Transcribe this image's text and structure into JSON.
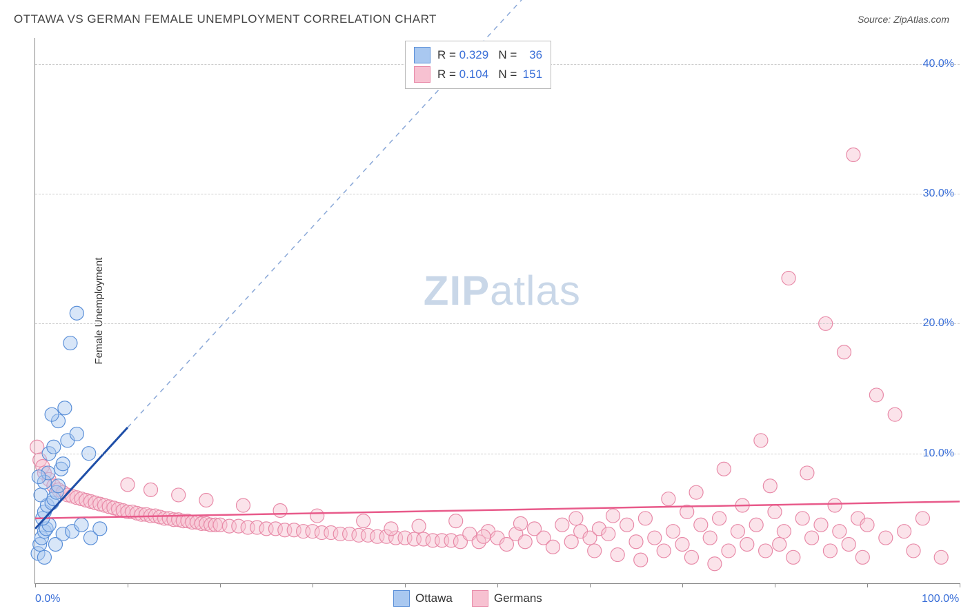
{
  "header": {
    "title": "OTTAWA VS GERMAN FEMALE UNEMPLOYMENT CORRELATION CHART",
    "source_prefix": "Source: ",
    "source_name": "ZipAtlas.com"
  },
  "ylabel": "Female Unemployment",
  "watermark": {
    "zip": "ZIP",
    "atlas": "atlas"
  },
  "chart": {
    "type": "scatter",
    "xlim": [
      0,
      100
    ],
    "ylim": [
      0,
      42
    ],
    "xticks": [
      0,
      10,
      20,
      30,
      40,
      50,
      60,
      70,
      80,
      90,
      100
    ],
    "xlabels_shown": {
      "0": "0.0%",
      "100": "100.0%"
    },
    "yticks": [
      10,
      20,
      30,
      40
    ],
    "ylabels": {
      "10": "10.0%",
      "20": "20.0%",
      "30": "30.0%",
      "40": "40.0%"
    },
    "grid_color": "#cccccc",
    "axis_color": "#888888",
    "tick_label_color": "#3a6fd8",
    "background_color": "#ffffff",
    "marker_radius": 10,
    "marker_opacity": 0.45,
    "series": [
      {
        "name": "Ottawa",
        "fill": "#a9c8f0",
        "stroke": "#5a8fd8",
        "trend_color": "#1f4fa8",
        "trend_dash_color": "#8aa8d8",
        "R": "0.329",
        "N": "36",
        "trend": {
          "x1": 0,
          "y1": 4.2,
          "x2": 10,
          "y2": 12.0,
          "dash_to_x": 54,
          "dash_to_y": 46
        },
        "points": [
          [
            0.3,
            2.3
          ],
          [
            0.5,
            3.0
          ],
          [
            0.7,
            3.5
          ],
          [
            1.0,
            4.0
          ],
          [
            1.2,
            4.2
          ],
          [
            1.5,
            4.5
          ],
          [
            0.8,
            5.0
          ],
          [
            1.0,
            5.5
          ],
          [
            1.3,
            6.0
          ],
          [
            1.8,
            6.2
          ],
          [
            2.0,
            6.5
          ],
          [
            2.3,
            7.0
          ],
          [
            2.5,
            7.5
          ],
          [
            0.6,
            6.8
          ],
          [
            1.0,
            7.8
          ],
          [
            1.4,
            8.5
          ],
          [
            2.8,
            8.8
          ],
          [
            3.0,
            9.2
          ],
          [
            1.5,
            10.0
          ],
          [
            2.0,
            10.5
          ],
          [
            3.5,
            11.0
          ],
          [
            4.5,
            11.5
          ],
          [
            2.5,
            12.5
          ],
          [
            3.2,
            13.5
          ],
          [
            1.8,
            13.0
          ],
          [
            5.8,
            10.0
          ],
          [
            3.8,
            18.5
          ],
          [
            4.5,
            20.8
          ],
          [
            2.2,
            3.0
          ],
          [
            3.0,
            3.8
          ],
          [
            4.0,
            4.0
          ],
          [
            5.0,
            4.5
          ],
          [
            6.0,
            3.5
          ],
          [
            7.0,
            4.2
          ],
          [
            1.0,
            2.0
          ],
          [
            0.4,
            8.2
          ]
        ]
      },
      {
        "name": "Germans",
        "fill": "#f7c1d1",
        "stroke": "#e88aa8",
        "trend_color": "#e85a8a",
        "R": "0.104",
        "N": "151",
        "trend": {
          "x1": 0,
          "y1": 5.0,
          "x2": 100,
          "y2": 6.3
        },
        "points": [
          [
            0.2,
            10.5
          ],
          [
            0.5,
            9.5
          ],
          [
            0.8,
            9.0
          ],
          [
            1.0,
            8.5
          ],
          [
            1.5,
            8.0
          ],
          [
            2.0,
            7.5
          ],
          [
            2.5,
            7.2
          ],
          [
            3.0,
            7.0
          ],
          [
            3.5,
            6.8
          ],
          [
            4.0,
            6.7
          ],
          [
            4.5,
            6.6
          ],
          [
            5.0,
            6.5
          ],
          [
            5.5,
            6.4
          ],
          [
            6.0,
            6.3
          ],
          [
            6.5,
            6.2
          ],
          [
            7.0,
            6.1
          ],
          [
            7.5,
            6.0
          ],
          [
            8.0,
            5.9
          ],
          [
            8.5,
            5.8
          ],
          [
            9.0,
            5.7
          ],
          [
            9.5,
            5.6
          ],
          [
            10.0,
            5.5
          ],
          [
            10.5,
            5.5
          ],
          [
            11.0,
            5.4
          ],
          [
            11.5,
            5.3
          ],
          [
            12.0,
            5.3
          ],
          [
            12.5,
            5.2
          ],
          [
            13.0,
            5.2
          ],
          [
            13.5,
            5.1
          ],
          [
            14.0,
            5.0
          ],
          [
            14.5,
            5.0
          ],
          [
            15.0,
            4.9
          ],
          [
            15.5,
            4.9
          ],
          [
            16.0,
            4.8
          ],
          [
            16.5,
            4.8
          ],
          [
            17.0,
            4.7
          ],
          [
            17.5,
            4.7
          ],
          [
            18.0,
            4.6
          ],
          [
            18.5,
            4.6
          ],
          [
            19.0,
            4.5
          ],
          [
            19.5,
            4.5
          ],
          [
            20.0,
            4.5
          ],
          [
            21.0,
            4.4
          ],
          [
            22.0,
            4.4
          ],
          [
            23.0,
            4.3
          ],
          [
            24.0,
            4.3
          ],
          [
            25.0,
            4.2
          ],
          [
            26.0,
            4.2
          ],
          [
            27.0,
            4.1
          ],
          [
            28.0,
            4.1
          ],
          [
            29.0,
            4.0
          ],
          [
            30.0,
            4.0
          ],
          [
            31.0,
            3.9
          ],
          [
            32.0,
            3.9
          ],
          [
            33.0,
            3.8
          ],
          [
            34.0,
            3.8
          ],
          [
            35.0,
            3.7
          ],
          [
            36.0,
            3.7
          ],
          [
            37.0,
            3.6
          ],
          [
            38.0,
            3.6
          ],
          [
            39.0,
            3.5
          ],
          [
            40.0,
            3.5
          ],
          [
            41.0,
            3.4
          ],
          [
            42.0,
            3.4
          ],
          [
            43.0,
            3.3
          ],
          [
            44.0,
            3.3
          ],
          [
            45.0,
            3.3
          ],
          [
            46.0,
            3.2
          ],
          [
            47.0,
            3.8
          ],
          [
            48.0,
            3.2
          ],
          [
            49.0,
            4.0
          ],
          [
            50.0,
            3.5
          ],
          [
            51.0,
            3.0
          ],
          [
            52.0,
            3.8
          ],
          [
            53.0,
            3.2
          ],
          [
            54.0,
            4.2
          ],
          [
            55.0,
            3.5
          ],
          [
            56.0,
            2.8
          ],
          [
            57.0,
            4.5
          ],
          [
            58.0,
            3.2
          ],
          [
            59.0,
            4.0
          ],
          [
            60.0,
            3.5
          ],
          [
            60.5,
            2.5
          ],
          [
            61.0,
            4.2
          ],
          [
            62.0,
            3.8
          ],
          [
            63.0,
            2.2
          ],
          [
            64.0,
            4.5
          ],
          [
            65.0,
            3.2
          ],
          [
            65.5,
            1.8
          ],
          [
            66.0,
            5.0
          ],
          [
            67.0,
            3.5
          ],
          [
            68.0,
            2.5
          ],
          [
            68.5,
            6.5
          ],
          [
            69.0,
            4.0
          ],
          [
            70.0,
            3.0
          ],
          [
            70.5,
            5.5
          ],
          [
            71.0,
            2.0
          ],
          [
            71.5,
            7.0
          ],
          [
            72.0,
            4.5
          ],
          [
            73.0,
            3.5
          ],
          [
            73.5,
            1.5
          ],
          [
            74.0,
            5.0
          ],
          [
            74.5,
            8.8
          ],
          [
            75.0,
            2.5
          ],
          [
            76.0,
            4.0
          ],
          [
            76.5,
            6.0
          ],
          [
            77.0,
            3.0
          ],
          [
            78.0,
            4.5
          ],
          [
            78.5,
            11.0
          ],
          [
            79.0,
            2.5
          ],
          [
            79.5,
            7.5
          ],
          [
            80.0,
            5.5
          ],
          [
            80.5,
            3.0
          ],
          [
            81.0,
            4.0
          ],
          [
            81.5,
            23.5
          ],
          [
            82.0,
            2.0
          ],
          [
            83.0,
            5.0
          ],
          [
            83.5,
            8.5
          ],
          [
            84.0,
            3.5
          ],
          [
            85.0,
            4.5
          ],
          [
            85.5,
            20.0
          ],
          [
            86.0,
            2.5
          ],
          [
            86.5,
            6.0
          ],
          [
            87.0,
            4.0
          ],
          [
            87.5,
            17.8
          ],
          [
            88.0,
            3.0
          ],
          [
            88.5,
            33.0
          ],
          [
            89.0,
            5.0
          ],
          [
            89.5,
            2.0
          ],
          [
            90.0,
            4.5
          ],
          [
            91.0,
            14.5
          ],
          [
            92.0,
            3.5
          ],
          [
            93.0,
            13.0
          ],
          [
            94.0,
            4.0
          ],
          [
            95.0,
            2.5
          ],
          [
            96.0,
            5.0
          ],
          [
            98.0,
            2.0
          ],
          [
            62.5,
            5.2
          ],
          [
            45.5,
            4.8
          ],
          [
            38.5,
            4.2
          ],
          [
            52.5,
            4.6
          ],
          [
            58.5,
            5.0
          ],
          [
            48.5,
            3.6
          ],
          [
            41.5,
            4.4
          ],
          [
            35.5,
            4.8
          ],
          [
            30.5,
            5.2
          ],
          [
            26.5,
            5.6
          ],
          [
            22.5,
            6.0
          ],
          [
            18.5,
            6.4
          ],
          [
            15.5,
            6.8
          ],
          [
            12.5,
            7.2
          ],
          [
            10.0,
            7.6
          ]
        ]
      }
    ]
  },
  "legend_top": {
    "R_label": "R =",
    "N_label": "N ="
  },
  "legend_bottom": {
    "items": [
      "Ottawa",
      "Germans"
    ]
  }
}
